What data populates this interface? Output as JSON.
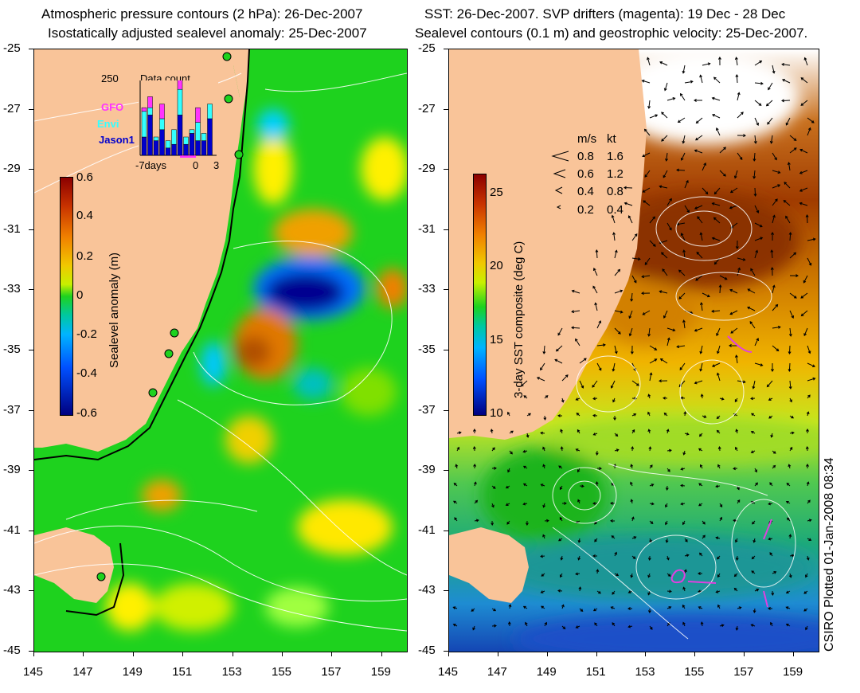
{
  "left_panel": {
    "title_line1": "Atmospheric pressure contours (2 hPa): 26-Dec-2007",
    "title_line2": "Isostatically adjusted sealevel anomaly: 25-Dec-2007",
    "colorbar": {
      "label": "Sealevel anomaly (m)",
      "ticks": [
        "0.6",
        "0.4",
        "0.2",
        "0",
        "-0.2",
        "-0.4",
        "-0.6"
      ]
    },
    "inset": {
      "title": "Data count",
      "ymax": "250",
      "legend": [
        {
          "name": "GFO",
          "color": "#ff33ff"
        },
        {
          "name": "Envi",
          "color": "#33ffff"
        },
        {
          "name": "Jason1",
          "color": "#0000cc"
        }
      ],
      "xlabel_left": "-7days",
      "xlabel_mid": "0",
      "xlabel_right": "3",
      "bars_fraction": [
        {
          "jason": 0.25,
          "envi": 0.35,
          "gfo": 0.05
        },
        {
          "jason": 0.55,
          "envi": 0.1,
          "gfo": 0.15
        },
        {
          "jason": 0.2,
          "envi": 0.05,
          "gfo": 0.0
        },
        {
          "jason": 0.35,
          "envi": 0.15,
          "gfo": 0.2
        },
        {
          "jason": 0.1,
          "envi": 0.1,
          "gfo": 0.0
        },
        {
          "jason": 0.15,
          "envi": 0.2,
          "gfo": 0.0
        },
        {
          "jason": 0.55,
          "envi": 0.35,
          "gfo": 0.15
        },
        {
          "jason": 0.15,
          "envi": 0.1,
          "gfo": 0.0
        },
        {
          "jason": 0.3,
          "envi": 0.05,
          "gfo": 0.0
        },
        {
          "jason": 0.2,
          "envi": 0.25,
          "gfo": 0.2
        },
        {
          "jason": 0.2,
          "envi": 0.1,
          "gfo": 0.0
        },
        {
          "jason": 0.5,
          "envi": 0.2,
          "gfo": 0.0
        }
      ]
    }
  },
  "right_panel": {
    "title_line1": "SST: 26-Dec-2007. SVP drifters (magenta): 19 Dec - 28 Dec",
    "title_line2": "Sealevel contours (0.1 m) and geostrophic velocity: 25-Dec-2007.",
    "colorbar": {
      "label": "3-day SST composite (deg C)",
      "ticks": [
        "25",
        "20",
        "15",
        "10"
      ]
    },
    "velocity_legend": {
      "header_ms": "m/s",
      "header_kt": "kt",
      "rows": [
        {
          "ms": "0.8",
          "kt": "1.6"
        },
        {
          "ms": "0.6",
          "kt": "1.2"
        },
        {
          "ms": "0.4",
          "kt": "0.8"
        },
        {
          "ms": "0.2",
          "kt": "0.4"
        }
      ]
    }
  },
  "axes": {
    "lat_labels": [
      "-25",
      "-27",
      "-29",
      "-31",
      "-33",
      "-35",
      "-37",
      "-39",
      "-41",
      "-43",
      "-45"
    ],
    "lon_labels": [
      "145",
      "147",
      "149",
      "151",
      "153",
      "155",
      "157",
      "159"
    ]
  },
  "credit": "CSIRO Plotted 01-Jan-2008 08:34",
  "colors": {
    "land": "#f9c499",
    "sea_green": "#1ed21e",
    "deep_blue": "#000080"
  }
}
